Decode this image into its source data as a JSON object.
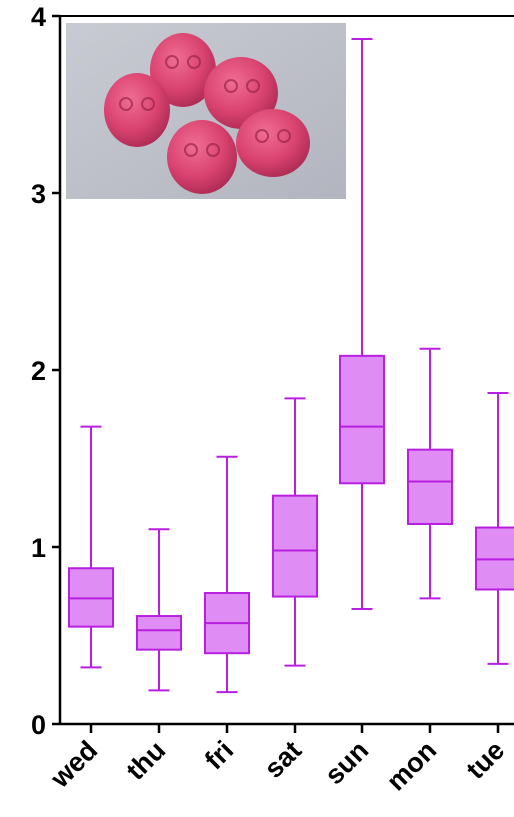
{
  "chart_data": {
    "type": "box",
    "title": "",
    "xlabel": "",
    "ylabel": "",
    "ylim": [
      0,
      4
    ],
    "yticks": [
      "0",
      "1",
      "2",
      "3",
      "4"
    ],
    "categories": [
      "wed",
      "thu",
      "fri",
      "sat",
      "sun",
      "mon",
      "tue"
    ],
    "series": [
      {
        "values": [
          {
            "min": 0.32,
            "q1": 0.55,
            "median": 0.71,
            "q3": 0.88,
            "max": 1.68
          },
          {
            "min": 0.19,
            "q1": 0.42,
            "median": 0.53,
            "q3": 0.61,
            "max": 1.1
          },
          {
            "min": 0.18,
            "q1": 0.4,
            "median": 0.57,
            "q3": 0.74,
            "max": 1.51
          },
          {
            "min": 0.33,
            "q1": 0.72,
            "median": 0.98,
            "q3": 1.29,
            "max": 1.84
          },
          {
            "min": 0.65,
            "q1": 1.36,
            "median": 1.68,
            "q3": 2.08,
            "max": 3.87
          },
          {
            "min": 0.71,
            "q1": 1.13,
            "median": 1.37,
            "q3": 1.55,
            "max": 2.12
          },
          {
            "min": 0.34,
            "q1": 0.76,
            "median": 0.93,
            "q3": 1.11,
            "max": 1.87
          }
        ]
      }
    ],
    "grid": false,
    "box_fill": "#df8cf5",
    "box_stroke": "#b81fe0",
    "inset_image": "photo of pink skull-shaped pills"
  }
}
